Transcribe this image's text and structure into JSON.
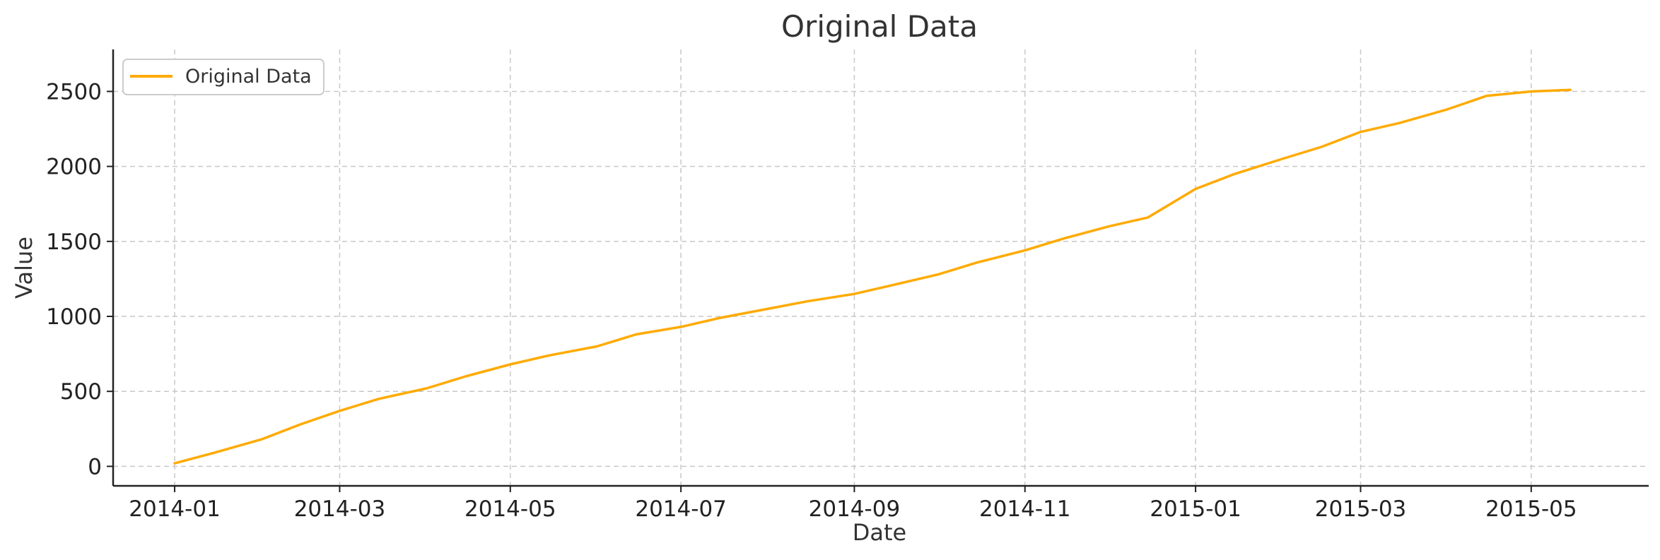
{
  "chart_data": {
    "type": "line",
    "title": "Original Data",
    "xlabel": "Date",
    "ylabel": "Value",
    "x_ticks": [
      "2014-01",
      "2014-03",
      "2014-05",
      "2014-07",
      "2014-09",
      "2014-11",
      "2015-01",
      "2015-03",
      "2015-05"
    ],
    "y_ticks": [
      0,
      500,
      1000,
      1500,
      2000,
      2500
    ],
    "xlim": [
      "2013-12-10",
      "2015-06-12"
    ],
    "ylim": [
      -130,
      2780
    ],
    "grid": true,
    "legend": "top-left",
    "series": [
      {
        "name": "Original Data",
        "color": "#FFAA00",
        "x": [
          "2014-01-01",
          "2014-01-15",
          "2014-02-01",
          "2014-02-15",
          "2014-03-01",
          "2014-03-15",
          "2014-04-01",
          "2014-04-15",
          "2014-05-01",
          "2014-05-15",
          "2014-06-01",
          "2014-06-15",
          "2014-07-01",
          "2014-07-15",
          "2014-08-01",
          "2014-08-15",
          "2014-09-01",
          "2014-09-15",
          "2014-10-01",
          "2014-10-15",
          "2014-11-01",
          "2014-11-15",
          "2014-12-01",
          "2014-12-15",
          "2015-01-01",
          "2015-01-15",
          "2015-02-01",
          "2015-02-15",
          "2015-03-01",
          "2015-03-15",
          "2015-04-01",
          "2015-04-15",
          "2015-05-01",
          "2015-05-15"
        ],
        "values": [
          20,
          90,
          180,
          280,
          370,
          450,
          520,
          600,
          680,
          740,
          800,
          880,
          930,
          990,
          1050,
          1100,
          1150,
          1210,
          1280,
          1360,
          1440,
          1520,
          1600,
          1660,
          1850,
          1950,
          2050,
          2130,
          2230,
          2290,
          2380,
          2470,
          2500,
          2510
        ]
      }
    ]
  }
}
